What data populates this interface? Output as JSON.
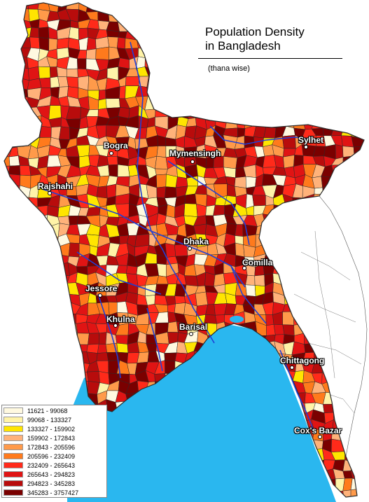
{
  "title": {
    "line1": "Population Density",
    "line2": "in Bangladesh",
    "subtitle": "(thana wise)"
  },
  "colors": {
    "sea": "#2ab7ef",
    "river": "#1f3fd6",
    "border": "#2b2b2b",
    "no_data": "#ffffff"
  },
  "cities": [
    {
      "id": "rajshahi",
      "name": "Rajshahi"
    },
    {
      "id": "bogra",
      "name": "Bogra"
    },
    {
      "id": "mymensingh",
      "name": "Mymensingh"
    },
    {
      "id": "sylhet",
      "name": "Sylhet"
    },
    {
      "id": "dhaka",
      "name": "Dhaka"
    },
    {
      "id": "comilla",
      "name": "Comilla"
    },
    {
      "id": "jessore",
      "name": "Jessore"
    },
    {
      "id": "khulna",
      "name": "Khulna"
    },
    {
      "id": "barisal",
      "name": "Barisal"
    },
    {
      "id": "chittagong",
      "name": "Chittagong"
    },
    {
      "id": "coxs-bazar",
      "name": "Cox's Bazar"
    }
  ],
  "legend": [
    {
      "label": "11621 - 99068",
      "color": "#fff9e0"
    },
    {
      "label": "99068 - 133327",
      "color": "#fff3a8"
    },
    {
      "label": "133327 - 159902",
      "color": "#ffe500"
    },
    {
      "label": "159902 - 172843",
      "color": "#ffb27a"
    },
    {
      "label": "172843 - 205596",
      "color": "#ff9a4a"
    },
    {
      "label": "205596 - 232409",
      "color": "#ff7a1c"
    },
    {
      "label": "232409 - 265643",
      "color": "#ff2a1a"
    },
    {
      "label": "265643 - 294823",
      "color": "#e01414"
    },
    {
      "label": "294823 - 345283",
      "color": "#b80c0c"
    },
    {
      "label": "345283 - 3757427",
      "color": "#7a0000"
    }
  ]
}
